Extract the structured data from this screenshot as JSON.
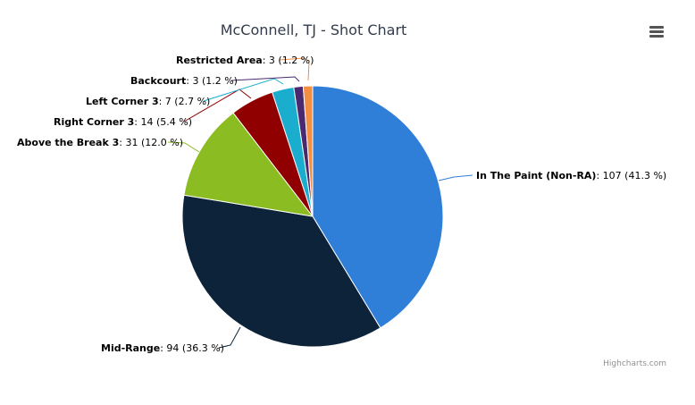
{
  "chart_data": {
    "type": "pie",
    "title": "McConnell, TJ - Shot Chart",
    "slices": [
      {
        "name": "In The Paint (Non-RA)",
        "value": 107,
        "percent": "41.3 %",
        "color": "#2f7ed8"
      },
      {
        "name": "Mid-Range",
        "value": 94,
        "percent": "36.3 %",
        "color": "#0d233a"
      },
      {
        "name": "Above the Break 3",
        "value": 31,
        "percent": "12.0 %",
        "color": "#8bbc21"
      },
      {
        "name": "Right Corner 3",
        "value": 14,
        "percent": "5.4 %",
        "color": "#910000"
      },
      {
        "name": "Left Corner 3",
        "value": 7,
        "percent": "2.7 %",
        "color": "#1aadce"
      },
      {
        "name": "Backcourt",
        "value": 3,
        "percent": "1.2 %",
        "color": "#492970"
      },
      {
        "name": "Restricted Area",
        "value": 3,
        "percent": "1.2 %",
        "color": "#f28f43"
      }
    ]
  },
  "credits": "Highcharts.com",
  "menu_icon": "hamburger-menu-icon"
}
